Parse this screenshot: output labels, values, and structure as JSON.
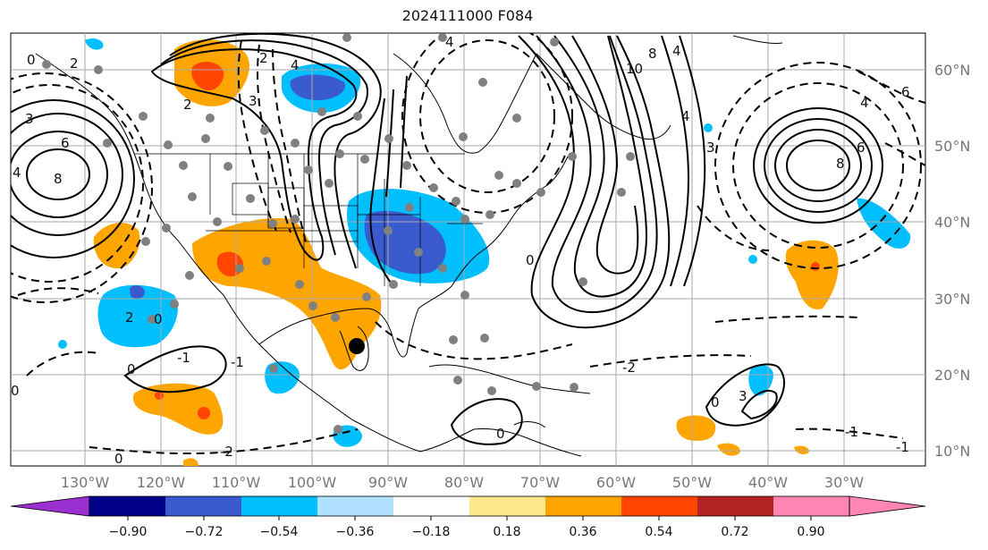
{
  "title": "2024111000 F084",
  "map": {
    "lon_ticks": [
      "130°W",
      "120°W",
      "110°W",
      "100°W",
      "90°W",
      "80°W",
      "70°W",
      "60°W",
      "50°W",
      "40°W",
      "30°W"
    ],
    "lat_ticks": [
      "60°N",
      "50°N",
      "40°N",
      "30°N",
      "20°N",
      "10°N"
    ],
    "contour_labels": [
      "2",
      "4",
      "2",
      "3",
      "6",
      "8",
      "4",
      "3",
      "2",
      "0",
      "2",
      "0",
      "-1",
      "0",
      "0",
      "-2",
      "-1",
      "10",
      "8",
      "4",
      "0",
      "4",
      "6",
      "8",
      "4",
      "6",
      "4",
      "3",
      "-2",
      "0",
      "0",
      "-1",
      "-1",
      "0",
      "3"
    ],
    "marker": "black-dot"
  },
  "colorbar": {
    "labels": [
      "−0.90",
      "−0.72",
      "−0.54",
      "−0.36",
      "−0.18",
      "0.18",
      "0.36",
      "0.54",
      "0.72",
      "0.90"
    ],
    "colors": [
      "#9b30d0",
      "#00008b",
      "#3a5bcd",
      "#00bfff",
      "#b0e2ff",
      "#ffffff",
      "#ffe88a",
      "#ffa500",
      "#ff4500",
      "#b22222",
      "#ff85b3"
    ]
  }
}
